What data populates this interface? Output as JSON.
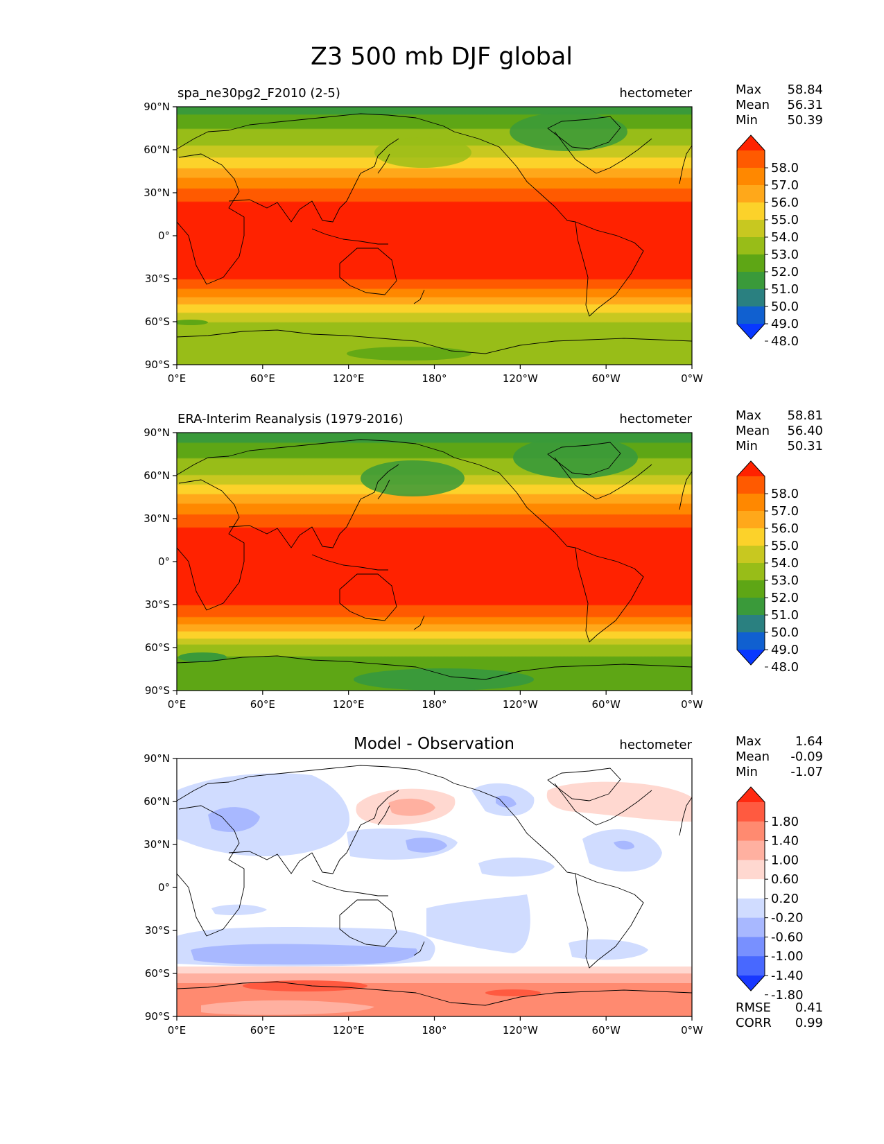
{
  "figure_title": "Z3 500 mb DJF global",
  "chart_data": [
    {
      "type": "heatmap",
      "id": "test",
      "title": "spa_ne30pg2_F2010 (2-5)",
      "units": "hectometer",
      "stats": [
        {
          "label": "Max",
          "value": "58.84"
        },
        {
          "label": "Mean",
          "value": "56.31"
        },
        {
          "label": "Min",
          "value": "50.39"
        }
      ],
      "colorbar": {
        "levels": [
          "58.0",
          "57.0",
          "56.0",
          "55.0",
          "54.0",
          "53.0",
          "52.0",
          "51.0",
          "50.0",
          "49.0",
          "48.0"
        ],
        "colors": [
          "#ff2200",
          "#ff5a00",
          "#ff8800",
          "#ffa81a",
          "#fcd22a",
          "#c8c820",
          "#98bd18",
          "#5ea615",
          "#3a9a3a",
          "#2a8080",
          "#1060d0",
          "#0838ff"
        ]
      },
      "x_ticks": [
        "0°E",
        "60°E",
        "120°E",
        "180°",
        "120°W",
        "60°W",
        "0°W"
      ],
      "y_ticks": [
        "90°N",
        "60°N",
        "30°N",
        "0°",
        "30°S",
        "60°S",
        "90°S"
      ],
      "xlim": [
        0,
        360
      ],
      "ylim": [
        -90,
        90
      ],
      "zonal_profile": [
        {
          "lat": 90,
          "value": 50.4
        },
        {
          "lat": 80,
          "value": 51.5
        },
        {
          "lat": 70,
          "value": 52.4
        },
        {
          "lat": 60,
          "value": 53.2
        },
        {
          "lat": 50,
          "value": 54.6
        },
        {
          "lat": 40,
          "value": 56.0
        },
        {
          "lat": 30,
          "value": 57.4
        },
        {
          "lat": 20,
          "value": 58.3
        },
        {
          "lat": 0,
          "value": 58.6
        },
        {
          "lat": -20,
          "value": 58.4
        },
        {
          "lat": -30,
          "value": 58.0
        },
        {
          "lat": -40,
          "value": 56.6
        },
        {
          "lat": -50,
          "value": 54.6
        },
        {
          "lat": -60,
          "value": 53.0
        },
        {
          "lat": -70,
          "value": 52.6
        },
        {
          "lat": -80,
          "value": 52.4
        },
        {
          "lat": -90,
          "value": 52.6
        }
      ]
    },
    {
      "type": "heatmap",
      "id": "reference",
      "title": "ERA-Interim Reanalysis (1979-2016)",
      "units": "hectometer",
      "stats": [
        {
          "label": "Max",
          "value": "58.81"
        },
        {
          "label": "Mean",
          "value": "56.40"
        },
        {
          "label": "Min",
          "value": "50.31"
        }
      ],
      "colorbar": {
        "levels": [
          "58.0",
          "57.0",
          "56.0",
          "55.0",
          "54.0",
          "53.0",
          "52.0",
          "51.0",
          "50.0",
          "49.0",
          "48.0"
        ],
        "colors": [
          "#ff2200",
          "#ff5a00",
          "#ff8800",
          "#ffa81a",
          "#fcd22a",
          "#c8c820",
          "#98bd18",
          "#5ea615",
          "#3a9a3a",
          "#2a8080",
          "#1060d0",
          "#0838ff"
        ]
      },
      "x_ticks": [
        "0°E",
        "60°E",
        "120°E",
        "180°",
        "120°W",
        "60°W",
        "0°W"
      ],
      "y_ticks": [
        "90°N",
        "60°N",
        "30°N",
        "0°",
        "30°S",
        "60°S",
        "90°S"
      ],
      "xlim": [
        0,
        360
      ],
      "ylim": [
        -90,
        90
      ],
      "zonal_profile": [
        {
          "lat": 90,
          "value": 50.3
        },
        {
          "lat": 80,
          "value": 51.3
        },
        {
          "lat": 70,
          "value": 52.2
        },
        {
          "lat": 60,
          "value": 53.0
        },
        {
          "lat": 50,
          "value": 54.5
        },
        {
          "lat": 40,
          "value": 56.0
        },
        {
          "lat": 30,
          "value": 57.4
        },
        {
          "lat": 20,
          "value": 58.3
        },
        {
          "lat": 0,
          "value": 58.6
        },
        {
          "lat": -20,
          "value": 58.4
        },
        {
          "lat": -30,
          "value": 58.0
        },
        {
          "lat": -40,
          "value": 56.8
        },
        {
          "lat": -50,
          "value": 54.8
        },
        {
          "lat": -60,
          "value": 52.6
        },
        {
          "lat": -70,
          "value": 51.6
        },
        {
          "lat": -80,
          "value": 51.2
        },
        {
          "lat": -90,
          "value": 51.4
        }
      ]
    },
    {
      "type": "heatmap",
      "id": "diff",
      "title": "Model - Observation",
      "units": "hectometer",
      "stats": [
        {
          "label": "Max",
          "value": "1.64"
        },
        {
          "label": "Mean",
          "value": "-0.09"
        },
        {
          "label": "Min",
          "value": "-1.07"
        }
      ],
      "metrics": [
        {
          "label": "RMSE",
          "value": "0.41"
        },
        {
          "label": "CORR",
          "value": "0.99"
        }
      ],
      "colorbar": {
        "levels": [
          "1.80",
          "1.40",
          "1.00",
          "0.60",
          "0.20",
          "-0.20",
          "-0.60",
          "-1.00",
          "-1.40",
          "-1.80"
        ],
        "colors": [
          "#ff2a10",
          "#ff5a40",
          "#ff8a70",
          "#ffb0a0",
          "#ffd8d0",
          "#ffffff",
          "#d0dcff",
          "#a8b8ff",
          "#7890ff",
          "#4868ff",
          "#1838ff"
        ]
      },
      "x_ticks": [
        "0°E",
        "60°E",
        "120°E",
        "180°",
        "120°W",
        "60°W",
        "0°W"
      ],
      "y_ticks": [
        "90°N",
        "60°N",
        "30°N",
        "0°",
        "30°S",
        "60°S",
        "90°S"
      ],
      "xlim": [
        0,
        360
      ],
      "ylim": [
        -90,
        90
      ]
    }
  ]
}
